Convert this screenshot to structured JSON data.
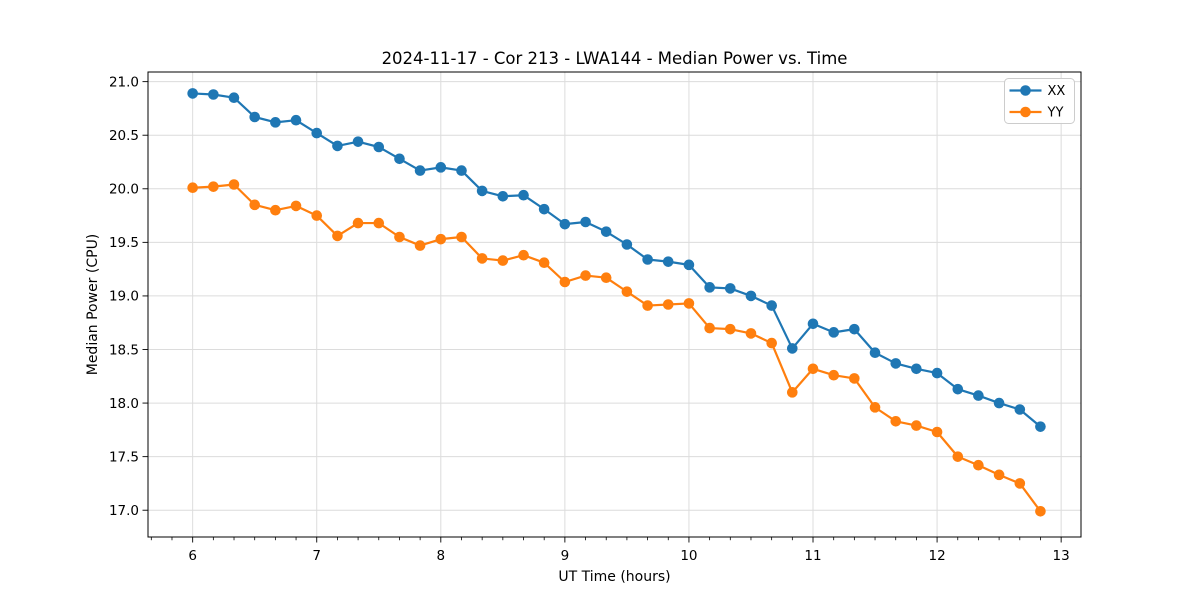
{
  "chart_data": {
    "type": "line",
    "title": "2024-11-17 - Cor 213 - LWA144 - Median Power vs. Time",
    "xlabel": "UT Time (hours)",
    "ylabel": "Median Power (CPU)",
    "xlim": [
      5.64,
      13.16
    ],
    "ylim": [
      16.75,
      21.09
    ],
    "x_ticks": [
      6,
      7,
      8,
      9,
      10,
      11,
      12,
      13
    ],
    "x_tick_labels": [
      "6",
      "7",
      "8",
      "9",
      "10",
      "11",
      "12",
      "13"
    ],
    "y_ticks": [
      17.0,
      17.5,
      18.0,
      18.5,
      19.0,
      19.5,
      20.0,
      20.5,
      21.0
    ],
    "y_tick_labels": [
      "17.0",
      "17.5",
      "18.0",
      "18.5",
      "19.0",
      "19.5",
      "20.0",
      "20.5",
      "21.0"
    ],
    "x_minor_per_hour": 6,
    "grid": true,
    "legend_position": "upper right",
    "x": [
      6.0,
      6.167,
      6.333,
      6.5,
      6.667,
      6.833,
      7.0,
      7.167,
      7.333,
      7.5,
      7.667,
      7.833,
      8.0,
      8.167,
      8.333,
      8.5,
      8.667,
      8.833,
      9.0,
      9.167,
      9.333,
      9.5,
      9.667,
      9.833,
      10.0,
      10.167,
      10.333,
      10.5,
      10.667,
      10.833,
      11.0,
      11.167,
      11.333,
      11.5,
      11.667,
      11.833,
      12.0,
      12.167,
      12.333,
      12.5,
      12.667,
      12.833
    ],
    "series": [
      {
        "name": "XX",
        "color": "#1f77b4",
        "values": [
          20.89,
          20.88,
          20.85,
          20.67,
          20.62,
          20.64,
          20.52,
          20.4,
          20.44,
          20.39,
          20.28,
          20.17,
          20.2,
          20.17,
          19.98,
          19.93,
          19.94,
          19.81,
          19.67,
          19.69,
          19.6,
          19.48,
          19.34,
          19.32,
          19.29,
          19.08,
          19.07,
          19.0,
          18.91,
          18.51,
          18.74,
          18.66,
          18.69,
          18.47,
          18.37,
          18.32,
          18.28,
          18.13,
          18.07,
          18.0,
          17.94,
          17.78
        ]
      },
      {
        "name": "YY",
        "color": "#ff7f0e",
        "values": [
          20.01,
          20.02,
          20.04,
          19.85,
          19.8,
          19.84,
          19.75,
          19.56,
          19.68,
          19.68,
          19.55,
          19.47,
          19.53,
          19.55,
          19.35,
          19.33,
          19.38,
          19.31,
          19.13,
          19.19,
          19.17,
          19.04,
          18.91,
          18.92,
          18.93,
          18.7,
          18.69,
          18.65,
          18.56,
          18.1,
          18.32,
          18.26,
          18.23,
          17.96,
          17.83,
          17.79,
          17.73,
          17.5,
          17.42,
          17.33,
          17.25,
          16.99
        ]
      }
    ]
  },
  "colors": {
    "background": "#ffffff",
    "grid": "#dcdcdc",
    "spine": "#000000",
    "legend_border": "#cccccc",
    "legend_fill": "#ffffff"
  }
}
